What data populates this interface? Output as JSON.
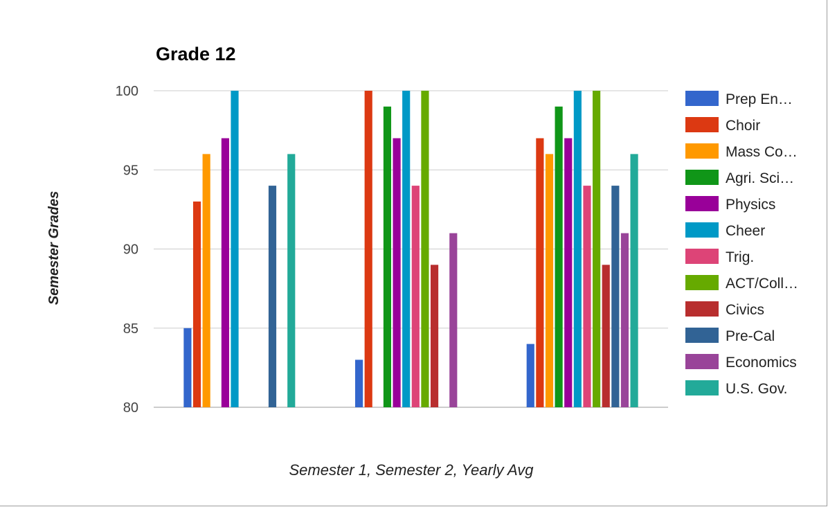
{
  "chart_data": {
    "type": "bar",
    "title": "Grade 12",
    "xlabel": "Semester 1, Semester 2, Yearly Avg",
    "ylabel": "Semester Grades",
    "ylim": [
      80,
      100
    ],
    "yticks": [
      "80",
      "85",
      "90",
      "95",
      "100"
    ],
    "grid": true,
    "legend_position": "right",
    "categories": [
      "Semester 1",
      "Semester 2",
      "Yearly Avg"
    ],
    "series": [
      {
        "name": "Prep En…",
        "color": "#3366cc",
        "values": [
          85,
          83,
          84
        ]
      },
      {
        "name": "Choir",
        "color": "#dc3912",
        "values": [
          93,
          100,
          97
        ]
      },
      {
        "name": "Mass Co…",
        "color": "#ff9900",
        "values": [
          96,
          null,
          96
        ]
      },
      {
        "name": "Agri. Sci…",
        "color": "#109618",
        "values": [
          null,
          99,
          99
        ]
      },
      {
        "name": "Physics",
        "color": "#990099",
        "values": [
          97,
          97,
          97
        ]
      },
      {
        "name": "Cheer",
        "color": "#0099c6",
        "values": [
          100,
          100,
          100
        ]
      },
      {
        "name": "Trig.",
        "color": "#dd4477",
        "values": [
          null,
          94,
          94
        ]
      },
      {
        "name": "ACT/Coll…",
        "color": "#66aa00",
        "values": [
          null,
          100,
          100
        ]
      },
      {
        "name": "Civics",
        "color": "#b82e2e",
        "values": [
          null,
          89,
          89
        ]
      },
      {
        "name": "Pre-Cal",
        "color": "#316395",
        "values": [
          94,
          null,
          94
        ]
      },
      {
        "name": "Economics",
        "color": "#994499",
        "values": [
          null,
          91,
          91
        ]
      },
      {
        "name": "U.S. Gov.",
        "color": "#22aa99",
        "values": [
          96,
          null,
          96
        ]
      }
    ]
  }
}
